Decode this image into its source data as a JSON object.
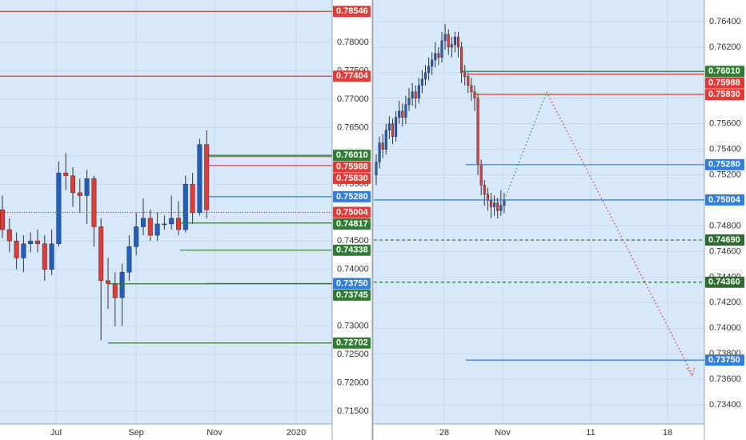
{
  "chart_data": [
    {
      "type": "candlestick",
      "background": "#d6e8f9",
      "up_color": "#1f5fbf",
      "down_color": "#e53935",
      "grid": true,
      "ylim": [
        0.71274,
        0.78747
      ],
      "yticks": [
        {
          "value": 0.715,
          "label": "0.71500"
        },
        {
          "value": 0.72,
          "label": "0.72000"
        },
        {
          "value": 0.725,
          "label": "0.72500"
        },
        {
          "value": 0.73,
          "label": "0.73000"
        },
        {
          "value": 0.735,
          "label": "0.73500"
        },
        {
          "value": 0.74,
          "label": "0.74000"
        },
        {
          "value": 0.745,
          "label": "0.74500"
        },
        {
          "value": 0.75,
          "label": "0.75000"
        },
        {
          "value": 0.755,
          "label": "0.75500"
        },
        {
          "value": 0.76,
          "label": "0.76000"
        },
        {
          "value": 0.765,
          "label": "0.76500"
        },
        {
          "value": 0.77,
          "label": "0.77000"
        },
        {
          "value": 0.775,
          "label": "0.77500"
        },
        {
          "value": 0.78,
          "label": "0.78000"
        }
      ],
      "xlabels": [
        "Jul",
        "Sep",
        "Nov",
        "2020"
      ],
      "open": [
        0.7505,
        0.747,
        0.745,
        0.742,
        0.7445,
        0.745,
        0.7445,
        0.74,
        0.7445,
        0.757,
        0.7565,
        0.7535,
        0.753,
        0.756,
        0.7475,
        0.738,
        0.7375,
        0.735,
        0.7395,
        0.744,
        0.7475,
        0.749,
        0.746,
        0.748,
        0.748,
        0.749,
        0.747,
        0.755,
        0.75,
        0.762
      ],
      "high": [
        0.753,
        0.749,
        0.7465,
        0.746,
        0.7465,
        0.747,
        0.746,
        0.747,
        0.759,
        0.7605,
        0.758,
        0.756,
        0.7575,
        0.7565,
        0.749,
        0.742,
        0.7395,
        0.741,
        0.746,
        0.75,
        0.7525,
        0.7505,
        0.75,
        0.7495,
        0.753,
        0.752,
        0.7565,
        0.757,
        0.763,
        0.7645
      ],
      "low": [
        0.7455,
        0.743,
        0.74,
        0.7395,
        0.743,
        0.743,
        0.738,
        0.739,
        0.744,
        0.754,
        0.751,
        0.75,
        0.748,
        0.744,
        0.7275,
        0.733,
        0.73,
        0.73,
        0.738,
        0.7425,
        0.746,
        0.745,
        0.745,
        0.747,
        0.747,
        0.746,
        0.7465,
        0.748,
        0.7495,
        0.749
      ],
      "close": [
        0.747,
        0.745,
        0.742,
        0.7445,
        0.745,
        0.7445,
        0.74,
        0.7445,
        0.757,
        0.7565,
        0.7535,
        0.753,
        0.756,
        0.7475,
        0.738,
        0.7375,
        0.735,
        0.7395,
        0.744,
        0.7475,
        0.749,
        0.746,
        0.748,
        0.748,
        0.749,
        0.747,
        0.755,
        0.75,
        0.762,
        0.7505
      ],
      "levels": [
        {
          "value": 0.78546,
          "label": "0.78546",
          "color": "#e53935"
        },
        {
          "value": 0.77404,
          "label": "0.77404",
          "color": "#e53935"
        },
        {
          "value": 0.7601,
          "label": "0.76010",
          "color": "#2e7d32"
        },
        {
          "value": 0.75988,
          "label": "0.75988",
          "color": "#e53935"
        },
        {
          "value": 0.7583,
          "label": "0.75830",
          "color": "#e53935"
        },
        {
          "value": 0.7528,
          "label": "0.75280",
          "color": "#2f7fe0"
        },
        {
          "value": 0.75004,
          "label": "0.75004",
          "color": "#e53935",
          "style": "dotted"
        },
        {
          "value": 0.74817,
          "label": "0.74817",
          "color": "#2e7d32"
        },
        {
          "value": 0.74338,
          "label": "0.74338",
          "color": "#2e7d32"
        },
        {
          "value": 0.7375,
          "label": "0.73750",
          "color": "#2f7fe0"
        },
        {
          "value": 0.73745,
          "label": "0.73745",
          "color": "#2e7d32"
        },
        {
          "value": 0.72702,
          "label": "0.72702",
          "color": "#2e7d32"
        }
      ]
    },
    {
      "type": "candlestick",
      "background": "#d6e8f9",
      "up_color": "#1f5fbf",
      "down_color": "#e53935",
      "grid": true,
      "ylim": [
        0.7325,
        0.76569
      ],
      "yticks": [
        {
          "value": 0.734,
          "label": "0.73400"
        },
        {
          "value": 0.736,
          "label": "0.73600"
        },
        {
          "value": 0.738,
          "label": "0.73800"
        },
        {
          "value": 0.74,
          "label": "0.74000"
        },
        {
          "value": 0.742,
          "label": "0.74200"
        },
        {
          "value": 0.744,
          "label": "0.74400"
        },
        {
          "value": 0.746,
          "label": "0.74600"
        },
        {
          "value": 0.748,
          "label": "0.74800"
        },
        {
          "value": 0.75,
          "label": "0.75000"
        },
        {
          "value": 0.752,
          "label": "0.75200"
        },
        {
          "value": 0.754,
          "label": "0.75400"
        },
        {
          "value": 0.756,
          "label": "0.75600"
        },
        {
          "value": 0.758,
          "label": "0.75800"
        },
        {
          "value": 0.76,
          "label": "0.76000"
        },
        {
          "value": 0.762,
          "label": "0.76200"
        },
        {
          "value": 0.764,
          "label": "0.76400"
        }
      ],
      "xlabels": [
        "28",
        "Nov",
        "11",
        "18"
      ],
      "open": [
        0.752,
        0.753,
        0.7545,
        0.754,
        0.7555,
        0.756,
        0.755,
        0.7565,
        0.757,
        0.7565,
        0.7575,
        0.758,
        0.7585,
        0.758,
        0.759,
        0.7595,
        0.76,
        0.7605,
        0.761,
        0.7615,
        0.7612,
        0.7625,
        0.763,
        0.762,
        0.7622,
        0.7628,
        0.762,
        0.76,
        0.7597,
        0.759,
        0.7585,
        0.758,
        0.7528,
        0.7512,
        0.7505,
        0.75,
        0.7495,
        0.7498,
        0.7492,
        0.7496
      ],
      "high": [
        0.7536,
        0.755,
        0.7552,
        0.756,
        0.7566,
        0.7564,
        0.757,
        0.7578,
        0.7576,
        0.7582,
        0.7588,
        0.7592,
        0.759,
        0.7596,
        0.7602,
        0.7606,
        0.7612,
        0.7616,
        0.7624,
        0.762,
        0.7632,
        0.7638,
        0.7634,
        0.7628,
        0.7632,
        0.7632,
        0.7624,
        0.7606,
        0.76,
        0.7596,
        0.759,
        0.7584,
        0.7532,
        0.7516,
        0.751,
        0.7506,
        0.7504,
        0.7502,
        0.7508,
        0.7506
      ],
      "low": [
        0.7512,
        0.7525,
        0.7533,
        0.7536,
        0.7548,
        0.7544,
        0.7546,
        0.756,
        0.7558,
        0.756,
        0.757,
        0.7574,
        0.7572,
        0.7576,
        0.7584,
        0.759,
        0.7594,
        0.7598,
        0.7604,
        0.7606,
        0.7608,
        0.7618,
        0.7614,
        0.7612,
        0.7616,
        0.7612,
        0.7592,
        0.759,
        0.7584,
        0.7578,
        0.757,
        0.752,
        0.7504,
        0.7496,
        0.7492,
        0.7486,
        0.7488,
        0.7486,
        0.7488,
        0.749
      ],
      "close": [
        0.753,
        0.7545,
        0.754,
        0.7555,
        0.756,
        0.755,
        0.7565,
        0.757,
        0.7565,
        0.7575,
        0.758,
        0.7585,
        0.758,
        0.759,
        0.7595,
        0.76,
        0.7605,
        0.761,
        0.7615,
        0.7612,
        0.7625,
        0.763,
        0.762,
        0.7622,
        0.7628,
        0.762,
        0.76,
        0.7597,
        0.759,
        0.7585,
        0.758,
        0.7528,
        0.7512,
        0.7505,
        0.75,
        0.7495,
        0.7498,
        0.7492,
        0.7496,
        0.75
      ],
      "levels": [
        {
          "value": 0.7601,
          "label": "0.76010",
          "color": "#2e7d32"
        },
        {
          "value": 0.75988,
          "label": "0.75988",
          "color": "#e53935"
        },
        {
          "value": 0.7583,
          "label": "0.75830",
          "color": "#e53935"
        },
        {
          "value": 0.7528,
          "label": "0.75280",
          "color": "#2f7fe0"
        },
        {
          "value": 0.75004,
          "label": "0.75004",
          "color": "#2f7fe0"
        },
        {
          "value": 0.7469,
          "label": "0.74690",
          "color": "#2e6b2e",
          "style": "dashed"
        },
        {
          "value": 0.7436,
          "label": "0.74360",
          "color": "#2e6b2e",
          "style": "dashed"
        },
        {
          "value": 0.7375,
          "label": "0.73750",
          "color": "#2f7fe0"
        }
      ]
    }
  ]
}
